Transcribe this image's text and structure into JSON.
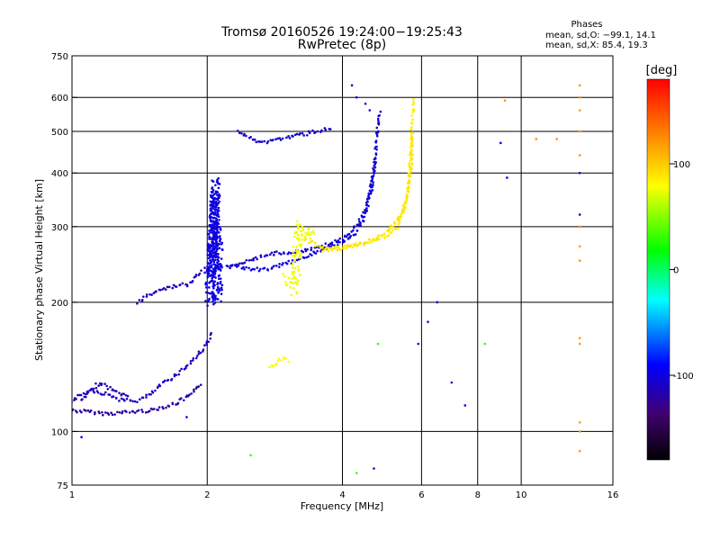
{
  "chart_data": {
    "type": "scatter",
    "title": "Tromsø 20160526 19:24:00−19:25:43",
    "subtitle": "RwPretec (8p)",
    "xlabel": "Frequency [MHz]",
    "ylabel": "Stationary phase Virtual Height [km]",
    "x_scale": "log",
    "y_scale": "log",
    "xlim": [
      1,
      16
    ],
    "ylim": [
      75,
      750
    ],
    "x_ticks": [
      1,
      2,
      4,
      6,
      8,
      10,
      16
    ],
    "y_ticks": [
      75,
      100,
      200,
      300,
      400,
      500,
      600,
      750
    ],
    "grid": true,
    "annotation": {
      "title": "Phases",
      "line1": "mean, sd,O: −99.1, 14.1",
      "line2": "mean, sd,X:  85.4, 19.3"
    },
    "colorbar": {
      "label": "[deg]",
      "min": -180,
      "max": 180,
      "ticks": [
        100,
        0,
        -100
      ],
      "colors": [
        "#000000",
        "#400070",
        "#0000ff",
        "#00ffff",
        "#00ff00",
        "#ffff00",
        "#ff8000",
        "#ff0000"
      ]
    },
    "series": [
      {
        "kind": "curve",
        "phase": -120,
        "points": [
          [
            1.0,
            112
          ],
          [
            1.2,
            110
          ],
          [
            1.5,
            112
          ],
          [
            1.7,
            116
          ],
          [
            1.85,
            122
          ],
          [
            1.95,
            130
          ]
        ]
      },
      {
        "kind": "curve",
        "phase": -110,
        "points": [
          [
            1.0,
            118
          ],
          [
            1.1,
            125
          ],
          [
            1.2,
            122
          ],
          [
            1.3,
            118
          ],
          [
            1.4,
            118
          ],
          [
            1.5,
            122
          ],
          [
            1.6,
            130
          ],
          [
            1.7,
            135
          ],
          [
            1.8,
            142
          ],
          [
            1.9,
            150
          ],
          [
            2.0,
            160
          ],
          [
            2.05,
            170
          ]
        ]
      },
      {
        "kind": "curve",
        "phase": -115,
        "points": [
          [
            1.05,
            118
          ],
          [
            1.15,
            130
          ],
          [
            1.25,
            124
          ],
          [
            1.35,
            120
          ]
        ]
      },
      {
        "kind": "cloud",
        "phase": -100,
        "points": [
          [
            2.02,
            200
          ],
          [
            2.05,
            260
          ],
          [
            2.07,
            320
          ],
          [
            2.09,
            380
          ],
          [
            2.04,
            230
          ],
          [
            2.06,
            290
          ],
          [
            2.08,
            350
          ],
          [
            2.1,
            200
          ],
          [
            2.12,
            240
          ],
          [
            2.11,
            300
          ]
        ]
      },
      {
        "kind": "curve",
        "phase": -105,
        "points": [
          [
            2.35,
            500
          ],
          [
            2.6,
            470
          ],
          [
            2.9,
            480
          ],
          [
            3.2,
            490
          ],
          [
            3.5,
            500
          ],
          [
            3.8,
            510
          ]
        ]
      },
      {
        "kind": "curve",
        "phase": -105,
        "points": [
          [
            2.25,
            240
          ],
          [
            2.5,
            250
          ],
          [
            2.8,
            260
          ],
          [
            3.2,
            262
          ],
          [
            3.6,
            270
          ],
          [
            4.0,
            280
          ],
          [
            4.3,
            300
          ],
          [
            4.5,
            330
          ],
          [
            4.65,
            380
          ],
          [
            4.75,
            450
          ],
          [
            4.8,
            520
          ],
          [
            4.85,
            560
          ]
        ]
      },
      {
        "kind": "curve",
        "phase": -100,
        "points": [
          [
            2.2,
            245
          ],
          [
            2.5,
            238
          ],
          [
            2.8,
            240
          ],
          [
            3.2,
            252
          ],
          [
            3.6,
            265
          ],
          [
            4.0,
            275
          ],
          [
            4.3,
            290
          ],
          [
            4.5,
            320
          ],
          [
            4.65,
            370
          ],
          [
            4.75,
            430
          ]
        ]
      },
      {
        "kind": "curve",
        "phase": -110,
        "points": [
          [
            1.4,
            200
          ],
          [
            1.5,
            210
          ],
          [
            1.6,
            215
          ],
          [
            1.7,
            218
          ],
          [
            1.8,
            220
          ],
          [
            1.9,
            230
          ],
          [
            2.0,
            240
          ]
        ]
      },
      {
        "kind": "curve",
        "phase": 85,
        "points": [
          [
            3.6,
            265
          ],
          [
            4.0,
            268
          ],
          [
            4.5,
            275
          ],
          [
            5.0,
            285
          ],
          [
            5.3,
            300
          ],
          [
            5.5,
            330
          ],
          [
            5.62,
            380
          ],
          [
            5.68,
            450
          ],
          [
            5.72,
            520
          ],
          [
            5.75,
            600
          ]
        ]
      },
      {
        "kind": "curve",
        "phase": 90,
        "points": [
          [
            3.3,
            280
          ],
          [
            3.7,
            265
          ],
          [
            4.2,
            270
          ],
          [
            4.7,
            280
          ],
          [
            5.1,
            295
          ],
          [
            5.4,
            320
          ],
          [
            5.6,
            360
          ],
          [
            5.7,
            420
          ],
          [
            5.75,
            500
          ]
        ]
      },
      {
        "kind": "curve",
        "phase": 80,
        "points": [
          [
            2.75,
            140
          ],
          [
            2.85,
            145
          ],
          [
            2.95,
            148
          ],
          [
            3.05,
            145
          ]
        ]
      },
      {
        "kind": "cloud",
        "phase": 75,
        "points": [
          [
            3.0,
            225
          ],
          [
            3.05,
            220
          ],
          [
            3.1,
            215
          ],
          [
            3.15,
            225
          ],
          [
            3.2,
            300
          ],
          [
            3.25,
            290
          ],
          [
            3.35,
            280
          ],
          [
            3.45,
            295
          ]
        ]
      },
      {
        "kind": "scatter",
        "phase": 120,
        "points": [
          [
            9.2,
            590
          ],
          [
            10.8,
            480
          ],
          [
            12.0,
            480
          ],
          [
            13.5,
            640
          ],
          [
            13.5,
            600
          ],
          [
            13.5,
            560
          ],
          [
            13.5,
            500
          ],
          [
            13.5,
            440
          ],
          [
            13.5,
            300
          ],
          [
            13.5,
            270
          ],
          [
            13.5,
            250
          ],
          [
            13.5,
            165
          ],
          [
            13.5,
            160
          ],
          [
            13.5,
            105
          ],
          [
            13.5,
            100
          ],
          [
            13.5,
            90
          ]
        ]
      },
      {
        "kind": "scatter",
        "phase": -100,
        "points": [
          [
            4.2,
            640
          ],
          [
            4.3,
            600
          ],
          [
            4.5,
            580
          ],
          [
            4.6,
            560
          ],
          [
            5.9,
            160
          ],
          [
            6.2,
            180
          ],
          [
            6.5,
            200
          ],
          [
            7.0,
            130
          ],
          [
            7.5,
            115
          ],
          [
            9.0,
            470
          ],
          [
            9.3,
            390
          ],
          [
            13.5,
            400
          ],
          [
            13.5,
            320
          ],
          [
            4.7,
            82
          ],
          [
            1.05,
            97
          ],
          [
            1.8,
            108
          ]
        ]
      },
      {
        "kind": "scatter",
        "phase": 30,
        "points": [
          [
            2.5,
            88
          ],
          [
            4.8,
            160
          ],
          [
            8.3,
            160
          ],
          [
            4.3,
            80
          ]
        ]
      }
    ]
  }
}
